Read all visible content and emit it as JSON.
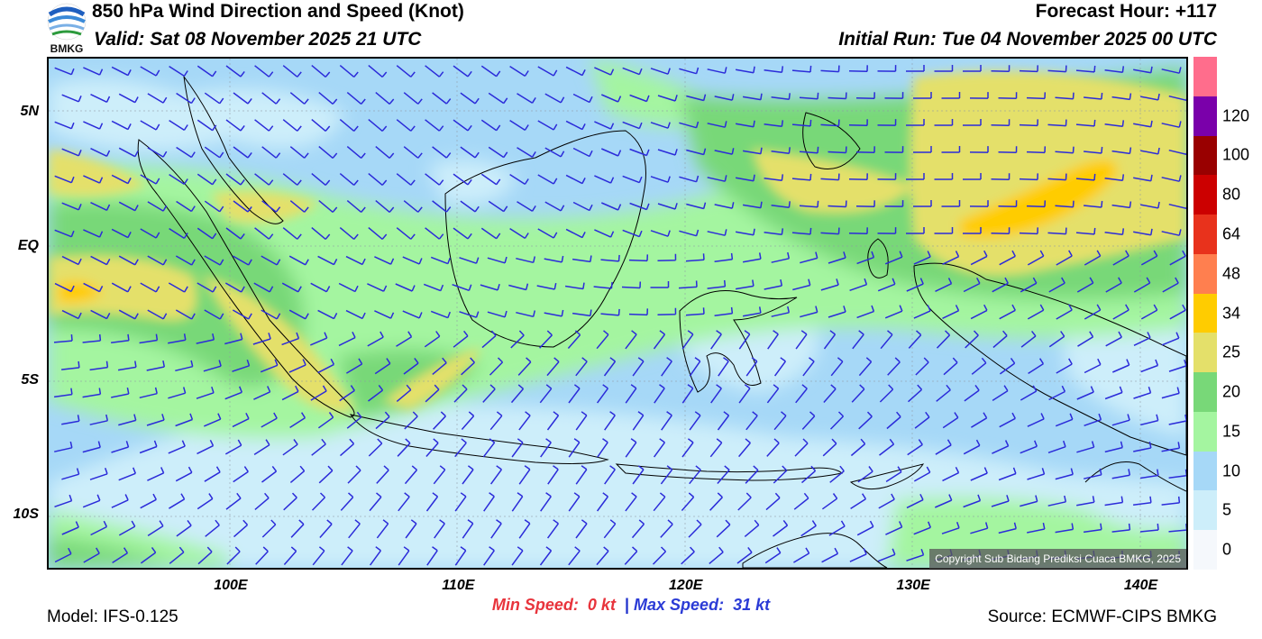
{
  "header": {
    "title": "850 hPa Wind Direction and Speed (Knot)",
    "valid": "Valid: Sat 08 November 2025 21 UTC",
    "forecast_hour": "Forecast Hour: +117",
    "initial_run": "Initial Run: Tue 04 November 2025 00 UTC"
  },
  "logo": {
    "text": "BMKG",
    "icon": "bmkg-logo-icon"
  },
  "map": {
    "lat_labels": [
      {
        "text": "5N",
        "lat": 5
      },
      {
        "text": "EQ",
        "lat": 0
      },
      {
        "text": "5S",
        "lat": -5
      },
      {
        "text": "10S",
        "lat": -10
      }
    ],
    "lon_labels": [
      {
        "text": "100E",
        "lon": 100
      },
      {
        "text": "110E",
        "lon": 110
      },
      {
        "text": "120E",
        "lon": 120
      },
      {
        "text": "130E",
        "lon": 130
      },
      {
        "text": "140E",
        "lon": 140
      }
    ],
    "lon_range": [
      92,
      142
    ],
    "lat_range": [
      -12,
      7
    ],
    "copyright": "Copyright Sub Bidang Prediksi Cuaca BMKG, 2025"
  },
  "colorbar": {
    "labels": [
      "0",
      "5",
      "10",
      "15",
      "20",
      "25",
      "34",
      "48",
      "64",
      "80",
      "100",
      "120"
    ],
    "colors": [
      "#f5f8fc",
      "#cdeefa",
      "#a6d8f7",
      "#a4f5a0",
      "#78d878",
      "#e4e06a",
      "#ffcc00",
      "#ff7f4f",
      "#e8321c",
      "#cc0000",
      "#990000",
      "#7a00aa",
      "#ff6d8c"
    ]
  },
  "speed": {
    "min_label": "Min Speed:",
    "min_value": "0 kt",
    "separator": "|",
    "max_label": "Max Speed:",
    "max_value": "31 kt"
  },
  "footer": {
    "model": "Model: IFS-0.125",
    "source": "Source: ECMWF-CIPS BMKG"
  },
  "colors": {
    "barb": "#2b2bd9",
    "coast": "#000000"
  }
}
